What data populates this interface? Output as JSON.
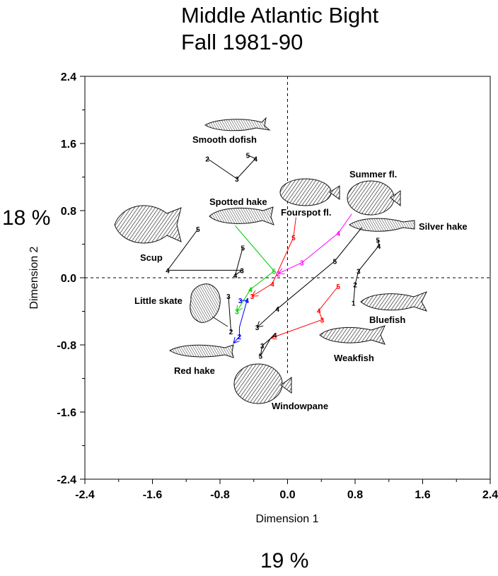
{
  "chart_data": {
    "type": "scatter",
    "title": "Middle Atlantic Bight",
    "subtitle": "Fall 1981-90",
    "xlabel": "Dimension 1",
    "ylabel": "Dimension 2",
    "x_percent": "19 %",
    "y_percent": "18 %",
    "xlim": [
      -2.4,
      2.4
    ],
    "ylim": [
      -2.4,
      2.4
    ],
    "x_ticks": [
      "-2.4",
      "-1.6",
      "-0.8",
      "0.0",
      "0.8",
      "1.6",
      "2.4"
    ],
    "y_ticks": [
      "2.4",
      "1.6",
      "0.8",
      "0.0",
      "-0.8",
      "-1.6",
      "-2.4"
    ],
    "reference_lines": "dashed lines at x = 0 and y = 0",
    "series": [
      {
        "name": "Smooth dofish",
        "color": "#000000",
        "points": [
          {
            "label": "2",
            "x": -0.95,
            "y": 1.42
          },
          {
            "label": "3",
            "x": -0.6,
            "y": 1.18
          },
          {
            "label": "4",
            "x": -0.38,
            "y": 1.42
          },
          {
            "label": "5",
            "x": -0.47,
            "y": 1.46
          }
        ]
      },
      {
        "name": "Scup",
        "color": "#000000",
        "points": [
          {
            "label": "5",
            "x": -1.06,
            "y": 0.58
          },
          {
            "label": "4",
            "x": -1.42,
            "y": 0.09
          },
          {
            "label": "3",
            "x": -0.54,
            "y": 0.09
          },
          {
            "label": "4",
            "x": -0.62,
            "y": 0.03
          },
          {
            "label": "5",
            "x": -0.53,
            "y": 0.36
          }
        ]
      },
      {
        "name": "Spotted hake",
        "color": "#00cc00",
        "arrow": true,
        "points": [
          {
            "label": "",
            "x": -0.62,
            "y": 0.62
          },
          {
            "label": "5",
            "x": -0.16,
            "y": 0.08
          },
          {
            "label": "4",
            "x": -0.44,
            "y": -0.14
          },
          {
            "label": "3",
            "x": -0.6,
            "y": -0.4
          }
        ]
      },
      {
        "name": "Fourspot fl.",
        "color": "#ff0000",
        "arrow": true,
        "points": [
          {
            "label": "",
            "x": 0.1,
            "y": 0.72
          },
          {
            "label": "5",
            "x": 0.07,
            "y": 0.48
          },
          {
            "label": "4",
            "x": -0.18,
            "y": -0.07
          },
          {
            "label": "3",
            "x": -0.42,
            "y": -0.22
          }
        ]
      },
      {
        "name": "Summer fl.",
        "color": "#ff00ff",
        "arrow": true,
        "points": [
          {
            "label": "",
            "x": 0.76,
            "y": 0.76
          },
          {
            "label": "4",
            "x": 0.6,
            "y": 0.53
          },
          {
            "label": "3",
            "x": 0.17,
            "y": 0.18
          },
          {
            "label": "2",
            "x": -0.11,
            "y": 0.05
          }
        ]
      },
      {
        "name": "Silver hake",
        "color": "#000000",
        "arrow": true,
        "points": [
          {
            "label": "",
            "x": 0.88,
            "y": 0.6
          },
          {
            "label": "5",
            "x": 0.56,
            "y": 0.2
          },
          {
            "label": "4",
            "x": -0.12,
            "y": -0.37
          },
          {
            "label": "3",
            "x": -0.36,
            "y": -0.59
          }
        ]
      },
      {
        "name": "Little skate",
        "color": "#0000ff",
        "arrow": true,
        "points": [
          {
            "label": "3",
            "x": -0.56,
            "y": -0.27
          },
          {
            "label": "4",
            "x": -0.48,
            "y": -0.27
          },
          {
            "label": "",
            "x": -0.57,
            "y": -0.59
          },
          {
            "label": "2",
            "x": -0.57,
            "y": -0.7
          },
          {
            "label": "",
            "x": -0.64,
            "y": -0.78
          }
        ]
      },
      {
        "name": "Red hake",
        "color": "#000000",
        "points": [
          {
            "label": "3",
            "x": -0.7,
            "y": -0.22
          },
          {
            "label": "2",
            "x": -0.67,
            "y": -0.64
          }
        ]
      },
      {
        "name": "Bluefish",
        "color": "#000000",
        "points": [
          {
            "label": "5",
            "x": 1.07,
            "y": 0.45
          },
          {
            "label": "4",
            "x": 1.08,
            "y": 0.38
          },
          {
            "label": "3",
            "x": 0.84,
            "y": 0.08
          },
          {
            "label": "2",
            "x": 0.8,
            "y": -0.08
          },
          {
            "label": "1",
            "x": 0.78,
            "y": -0.3
          }
        ]
      },
      {
        "name": "Weakfish",
        "color": "#ff0000",
        "arrow": true,
        "points": [
          {
            "label": "5",
            "x": 0.6,
            "y": -0.1
          },
          {
            "label": "4",
            "x": 0.37,
            "y": -0.39
          },
          {
            "label": "3",
            "x": 0.41,
            "y": -0.5
          },
          {
            "label": "",
            "x": -0.2,
            "y": -0.72
          }
        ]
      },
      {
        "name": "Windowpane",
        "color": "#000000",
        "points": [
          {
            "label": "4",
            "x": -0.15,
            "y": -0.68
          },
          {
            "label": "3",
            "x": -0.3,
            "y": -0.81
          },
          {
            "label": "5",
            "x": -0.32,
            "y": -0.93
          },
          {
            "label": "",
            "x": -0.2,
            "y": -0.72
          }
        ]
      }
    ]
  }
}
